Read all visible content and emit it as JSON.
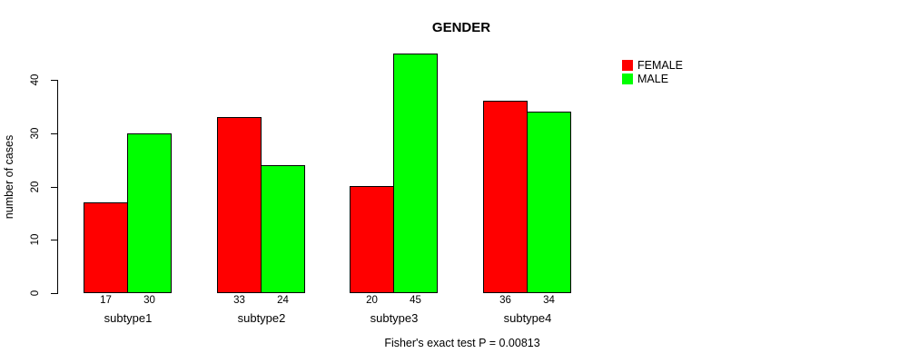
{
  "chart_data": {
    "type": "bar",
    "title": "GENDER",
    "categories": [
      "subtype1",
      "subtype2",
      "subtype3",
      "subtype4"
    ],
    "series": [
      {
        "name": "FEMALE",
        "color": "#ff0000",
        "values": [
          17,
          33,
          20,
          36
        ]
      },
      {
        "name": "MALE",
        "color": "#00ff00",
        "values": [
          30,
          24,
          45,
          34
        ]
      }
    ],
    "bar_value_labels": [
      [
        "17",
        "30"
      ],
      [
        "33",
        "24"
      ],
      [
        "20",
        "45"
      ],
      [
        "36",
        "34"
      ]
    ],
    "xlabel": "",
    "ylabel": "number of cases",
    "ylim": [
      0,
      45
    ],
    "yticks": [
      0,
      10,
      20,
      30,
      40
    ],
    "grid": false,
    "legend_position": "top-right",
    "caption": "Fisher's exact test P = 0.00813"
  },
  "colors": {
    "female": "#ff0000",
    "male": "#00ff00",
    "axis": "#000000",
    "background": "#ffffff",
    "text": "#000000"
  }
}
